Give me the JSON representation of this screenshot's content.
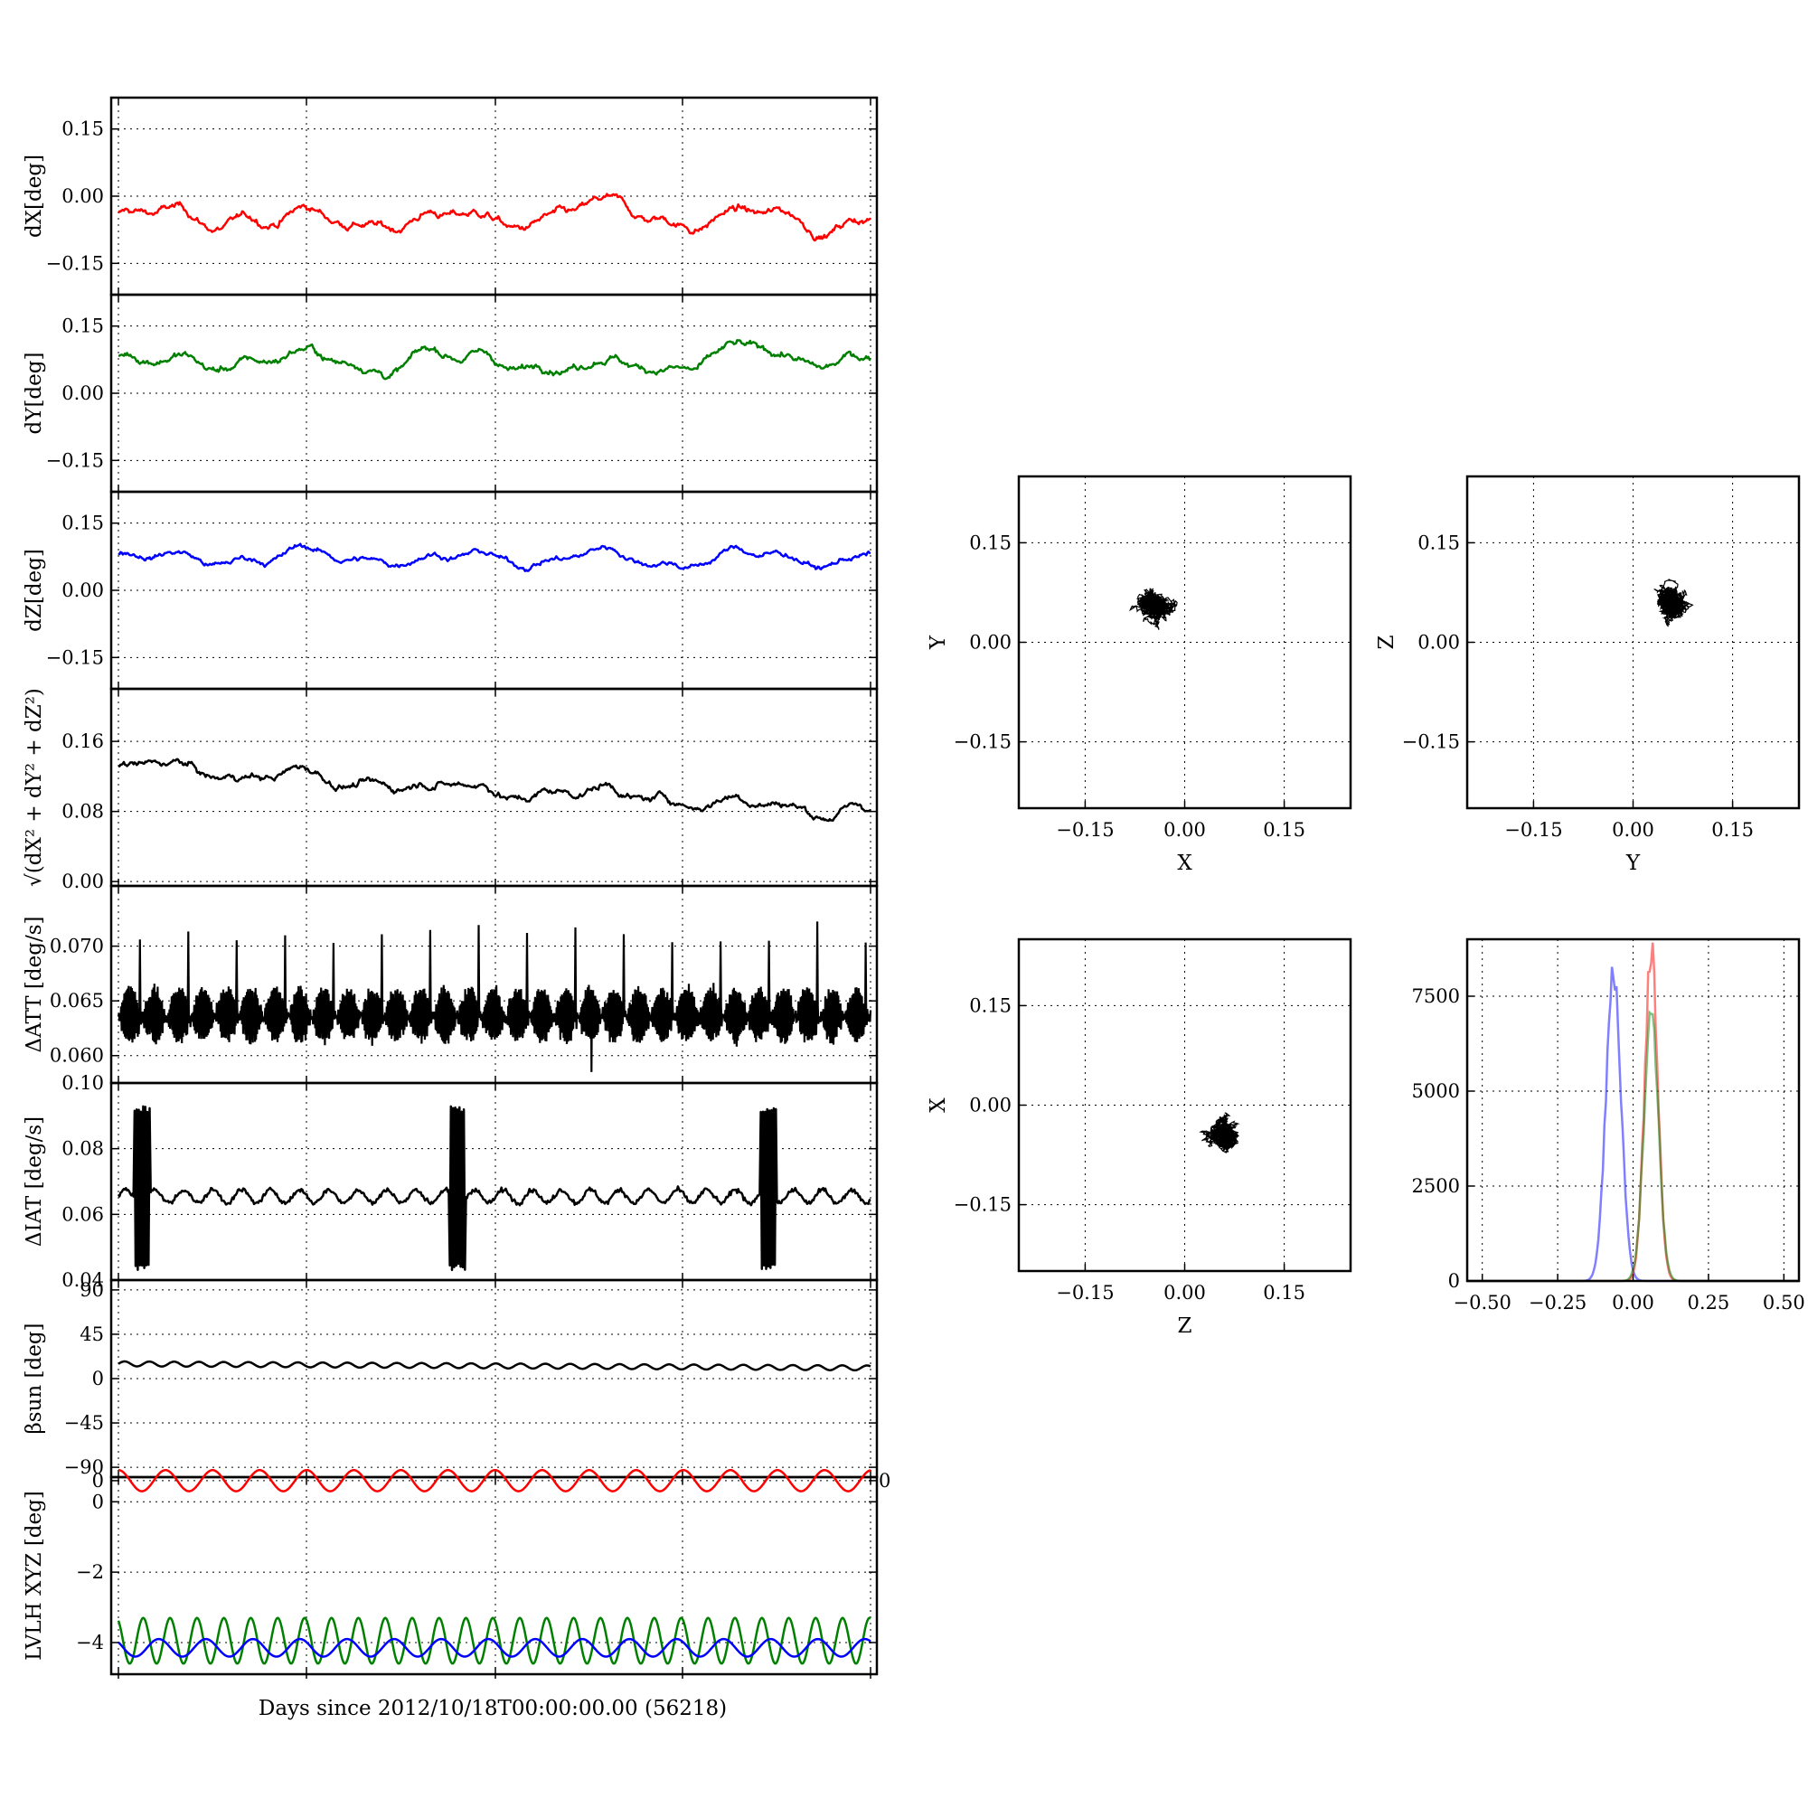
{
  "figure": {
    "xlabel": "Days since 2012/10/18T00:00:00.00 (56218)"
  },
  "colors": {
    "red": "#ff0000",
    "green": "#008000",
    "blue": "#0000ff",
    "black": "#000000"
  },
  "panels": [
    {
      "id": "dx",
      "ylabel": "dX[deg]",
      "yticks": [
        "0.15",
        "0.00",
        "−0.15"
      ],
      "ytick_values": [
        0.15,
        0.0,
        -0.15
      ],
      "ylim": [
        -0.22,
        0.22
      ]
    },
    {
      "id": "dy",
      "ylabel": "dY[deg]",
      "yticks": [
        "0.15",
        "0.00",
        "−0.15"
      ],
      "ytick_values": [
        0.15,
        0.0,
        -0.15
      ],
      "ylim": [
        -0.22,
        0.22
      ]
    },
    {
      "id": "dz",
      "ylabel": "dZ[deg]",
      "yticks": [
        "0.15",
        "0.00",
        "−0.15"
      ],
      "ytick_values": [
        0.15,
        0.0,
        -0.15
      ],
      "ylim": [
        -0.22,
        0.22
      ]
    },
    {
      "id": "norm",
      "ylabel": "√(dX² + dY² + dZ²)",
      "yticks": [
        "0.16",
        "0.08",
        "0.00"
      ],
      "ytick_values": [
        0.16,
        0.08,
        0.0
      ],
      "ylim": [
        -0.005,
        0.22
      ]
    },
    {
      "id": "datt",
      "ylabel": "ΔATT [deg/s]",
      "yticks": [
        "0.070",
        "0.065",
        "0.060"
      ],
      "ytick_values": [
        0.07,
        0.065,
        0.06
      ],
      "ylim": [
        0.0575,
        0.0755
      ]
    },
    {
      "id": "diat",
      "ylabel": "ΔIAT [deg/s]",
      "yticks": [
        "0.10",
        "0.08",
        "0.06",
        "0.04"
      ],
      "ytick_values": [
        0.1,
        0.08,
        0.06,
        0.04
      ],
      "ylim": [
        0.04,
        0.1
      ]
    },
    {
      "id": "beta",
      "ylabel": "βsun [deg]",
      "yticks": [
        "90",
        "45",
        "0",
        "−45",
        "−90"
      ],
      "ytick_values": [
        90,
        45,
        0,
        -45,
        -90
      ],
      "ylim": [
        -100,
        100
      ]
    },
    {
      "id": "lvlh",
      "ylabel": "LVLH XYZ [deg]",
      "yticks": [
        "0",
        "0",
        "−2",
        "−4"
      ],
      "ytick_values": [
        0.6,
        0,
        -2,
        -4
      ],
      "ylim": [
        -4.9,
        0.7
      ],
      "extra_right_tick": "0"
    }
  ],
  "scatter_panels": [
    {
      "id": "xy",
      "xlabel": "X",
      "ylabel": "Y",
      "xticks": [
        "−0.15",
        "0.00",
        "0.15"
      ],
      "yticks": [
        "0.15",
        "0.00",
        "−0.15"
      ],
      "tick_values": [
        -0.15,
        0.0,
        0.15
      ],
      "lim": [
        -0.25,
        0.25
      ],
      "center": [
        -0.045,
        0.06
      ],
      "spread": [
        0.027,
        0.022
      ]
    },
    {
      "id": "yz",
      "xlabel": "Y",
      "ylabel": "Z",
      "xticks": [
        "−0.15",
        "0.00",
        "0.15"
      ],
      "yticks": [
        "0.15",
        "0.00",
        "−0.15"
      ],
      "tick_values": [
        -0.15,
        0.0,
        0.15
      ],
      "lim": [
        -0.25,
        0.25
      ],
      "center": [
        0.06,
        0.063
      ],
      "spread": [
        0.025,
        0.019
      ]
    },
    {
      "id": "zx",
      "xlabel": "Z",
      "ylabel": "X",
      "xticks": [
        "−0.15",
        "0.00",
        "0.15"
      ],
      "yticks": [
        "0.15",
        "0.00",
        "−0.15"
      ],
      "tick_values": [
        -0.15,
        0.0,
        0.15
      ],
      "lim": [
        -0.25,
        0.25
      ],
      "center": [
        0.065,
        -0.045
      ],
      "spread": [
        0.022,
        0.027
      ]
    }
  ],
  "chart_data": {
    "type": "line",
    "time_series": {
      "x_axis": "Days since 2012/10/18T00:00:00.00 (56218)",
      "series": [
        {
          "panel": "dX",
          "color": "red",
          "mean": -0.05,
          "range": [
            -0.11,
            0.01
          ]
        },
        {
          "panel": "dY",
          "color": "green",
          "mean": 0.075,
          "range": [
            0.0,
            0.125
          ]
        },
        {
          "panel": "dZ",
          "color": "blue",
          "mean": 0.075,
          "range": [
            0.02,
            0.12
          ]
        },
        {
          "panel": "norm",
          "color": "black",
          "start": 0.13,
          "end": 0.085,
          "range": [
            0.07,
            0.17
          ]
        },
        {
          "panel": "dATT",
          "color": "black",
          "baseline": 0.0635,
          "range": [
            0.0585,
            0.0725
          ]
        },
        {
          "panel": "dIAT",
          "color": "black",
          "baseline": 0.065,
          "burst_range": [
            0.043,
            0.092
          ]
        },
        {
          "panel": "beta_sun",
          "color": "black",
          "value": 15
        },
        {
          "panel": "LVLH X",
          "color": "red",
          "range": [
            0.3,
            0.9
          ],
          "cycles": 16
        },
        {
          "panel": "LVLH Y",
          "color": "green",
          "range": [
            -4.6,
            -3.3
          ],
          "cycles": 28
        },
        {
          "panel": "LVLH Z",
          "color": "blue",
          "range": [
            -4.4,
            -3.9
          ],
          "cycles": 16
        }
      ]
    },
    "histogram": {
      "xticks": [
        "−0.50",
        "−0.25",
        "0.00",
        "0.25",
        "0.50"
      ],
      "xtick_values": [
        -0.5,
        -0.25,
        0.0,
        0.25,
        0.5
      ],
      "yticks": [
        "7500",
        "5000",
        "2500",
        "0"
      ],
      "ytick_values": [
        7500,
        5000,
        2500,
        0
      ],
      "xlim": [
        -0.55,
        0.55
      ],
      "ylim": [
        0,
        9000
      ],
      "series": [
        {
          "name": "",
          "color": "blue",
          "peak_x": -0.065,
          "peak_count": 8600,
          "width": 0.025
        },
        {
          "name": "",
          "color": "red",
          "peak_x": 0.06,
          "peak_count": 9000,
          "width": 0.022
        },
        {
          "name": "",
          "color": "green",
          "peak_x": 0.06,
          "peak_count": 7200,
          "width": 0.024
        }
      ]
    }
  }
}
